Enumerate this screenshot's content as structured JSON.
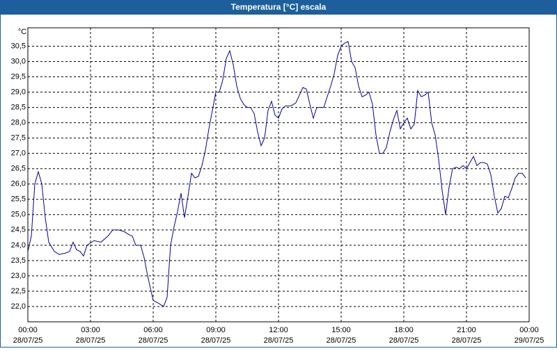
{
  "chart_data": {
    "type": "line",
    "title": "Temperatura [°C] escala",
    "y_unit": "°C",
    "x": [
      0,
      10,
      20,
      30,
      40,
      50,
      60,
      76,
      90,
      110,
      120,
      130,
      140,
      150,
      160,
      170,
      190,
      210,
      230,
      244,
      260,
      276,
      290,
      300,
      310,
      324,
      334,
      344,
      354,
      360,
      376,
      390,
      400,
      410,
      420,
      430,
      440,
      450,
      460,
      470,
      480,
      490,
      500,
      510,
      520,
      530,
      540,
      550,
      560,
      570,
      580,
      590,
      600,
      610,
      620,
      630,
      640,
      650,
      660,
      670,
      680,
      690,
      700,
      710,
      720,
      730,
      740,
      756,
      770,
      780,
      790,
      800,
      810,
      820,
      830,
      840,
      850,
      860,
      870,
      880,
      890,
      900,
      910,
      920,
      930,
      940,
      950,
      960,
      970,
      980,
      990,
      1000,
      1010,
      1020,
      1030,
      1040,
      1050,
      1060,
      1070,
      1080,
      1090,
      1100,
      1110,
      1120,
      1130,
      1140,
      1150,
      1160,
      1170,
      1180,
      1190,
      1200,
      1210,
      1220,
      1230,
      1240,
      1250,
      1260,
      1270,
      1280,
      1290,
      1300,
      1310,
      1320,
      1330,
      1340,
      1350,
      1360,
      1370,
      1380,
      1390,
      1400,
      1410,
      1420,
      1430
    ],
    "series": [
      {
        "color": "#00009c",
        "values": [
          23.8,
          24.3,
          26.0,
          26.4,
          26.0,
          24.9,
          24.1,
          23.8,
          23.7,
          23.75,
          23.8,
          24.1,
          23.85,
          23.8,
          23.65,
          24.0,
          24.15,
          24.1,
          24.3,
          24.5,
          24.5,
          24.45,
          24.35,
          24.3,
          24.0,
          24.0,
          23.6,
          23.0,
          22.5,
          22.2,
          22.1,
          22.0,
          22.3,
          24.0,
          24.6,
          25.1,
          25.7,
          24.9,
          25.6,
          26.35,
          26.2,
          26.25,
          26.6,
          27.1,
          27.8,
          28.4,
          29.0,
          29.0,
          29.4,
          30.1,
          30.35,
          29.9,
          29.2,
          28.8,
          28.6,
          28.5,
          28.5,
          28.3,
          27.7,
          27.25,
          27.5,
          28.4,
          28.7,
          28.25,
          28.15,
          28.45,
          28.55,
          28.55,
          28.65,
          28.9,
          29.15,
          29.1,
          28.6,
          28.15,
          28.5,
          28.5,
          28.5,
          28.85,
          29.2,
          29.6,
          30.2,
          30.5,
          30.6,
          30.65,
          30.0,
          29.8,
          29.2,
          28.85,
          28.9,
          29.0,
          28.6,
          27.6,
          27.0,
          27.0,
          27.2,
          27.7,
          28.1,
          28.4,
          27.8,
          28.0,
          28.15,
          27.8,
          27.95,
          29.05,
          28.85,
          28.9,
          29.0,
          28.0,
          27.6,
          26.8,
          25.8,
          25.0,
          25.9,
          26.5,
          26.55,
          26.5,
          26.6,
          26.5,
          26.7,
          26.9,
          26.6,
          26.7,
          26.7,
          26.65,
          26.3,
          25.6,
          25.05,
          25.2,
          25.6,
          25.55,
          25.85,
          26.2,
          26.35,
          26.35,
          26.2
        ]
      }
    ],
    "xlim": [
      0,
      1440
    ],
    "xticks": [
      {
        "value": 0,
        "label": "00:00"
      },
      {
        "value": 180,
        "label": "03:00"
      },
      {
        "value": 360,
        "label": "06:00"
      },
      {
        "value": 540,
        "label": "09:00"
      },
      {
        "value": 720,
        "label": "12:00"
      },
      {
        "value": 900,
        "label": "15:00"
      },
      {
        "value": 1080,
        "label": "18:00"
      },
      {
        "value": 1260,
        "label": "21:00"
      },
      {
        "value": 1440,
        "label": "00:00"
      }
    ],
    "xtick_dates": [
      "28/07/25",
      "28/07/25",
      "28/07/25",
      "28/07/25",
      "28/07/25",
      "28/07/25",
      "28/07/25",
      "28/07/25",
      "29/07/25"
    ],
    "ylim": [
      21.5,
      31.1
    ],
    "yticks": [
      {
        "value": 22,
        "label": "22,0"
      },
      {
        "value": 22.5,
        "label": "22,5"
      },
      {
        "value": 23,
        "label": "23,0"
      },
      {
        "value": 23.5,
        "label": "23,5"
      },
      {
        "value": 24,
        "label": "24,0"
      },
      {
        "value": 24.5,
        "label": "24,5"
      },
      {
        "value": 25,
        "label": "25,0"
      },
      {
        "value": 25.5,
        "label": "25,5"
      },
      {
        "value": 26,
        "label": "26,0"
      },
      {
        "value": 26.5,
        "label": "26,5"
      },
      {
        "value": 27,
        "label": "27,0"
      },
      {
        "value": 27.5,
        "label": "27,5"
      },
      {
        "value": 28,
        "label": "28,0"
      },
      {
        "value": 28.5,
        "label": "28,5"
      },
      {
        "value": 29,
        "label": "29,0"
      },
      {
        "value": 29.5,
        "label": "29,5"
      },
      {
        "value": 30,
        "label": "30,0"
      },
      {
        "value": 30.5,
        "label": "30,5"
      }
    ],
    "grid": true
  }
}
